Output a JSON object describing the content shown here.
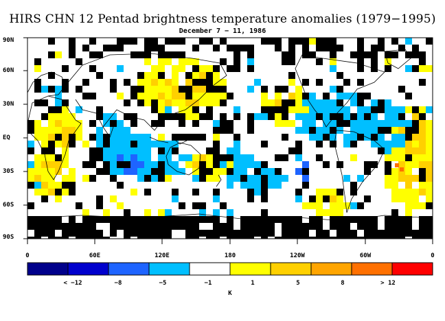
{
  "title": "HIRS CHN 12 Pentad brightness temperature anomalies (1979−1995)",
  "subtitle": "December 7 − 11, 1986",
  "map": {
    "lat_labels": [
      "90N",
      "60N",
      "30N",
      "EQ",
      "30S",
      "60S",
      "90S"
    ],
    "lon_labels": [
      "0",
      "60E",
      "120E",
      "180",
      "120W",
      "60W",
      "0"
    ]
  },
  "colorbar": {
    "colors": [
      "#00008b",
      "#0000cd",
      "#1e64ff",
      "#00bfff",
      "#ffffff",
      "#ffff00",
      "#ffd000",
      "#ffa500",
      "#ff7000",
      "#ff0000"
    ],
    "labels": [
      "< −12",
      "−8",
      "−5",
      "−1",
      "1",
      "5",
      "8",
      "> 12"
    ],
    "unit": "K"
  }
}
